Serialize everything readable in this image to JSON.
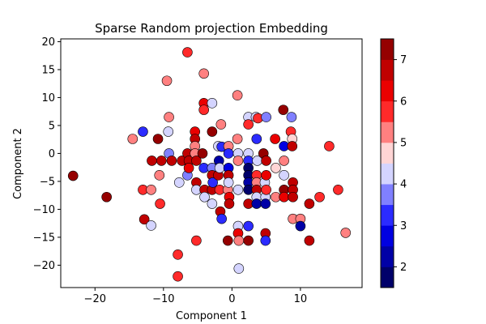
{
  "chart_data": {
    "type": "scatter",
    "title": "Sparse Random projection Embedding",
    "xlabel": "Component 1",
    "ylabel": "Component 2",
    "xlim": [
      -25,
      19
    ],
    "ylim": [
      -24,
      20.5
    ],
    "xticks": [
      -20,
      -10,
      0,
      10
    ],
    "yticks": [
      -20,
      -15,
      -10,
      -5,
      0,
      5,
      10,
      15,
      20
    ],
    "colorbar": {
      "range": [
        1.5,
        7.5
      ],
      "ticks": [
        2,
        3,
        4,
        5,
        6,
        7
      ],
      "colormap": "seismic",
      "levels": 12
    },
    "grid": false,
    "legend": "none",
    "points": [
      {
        "x": -23.2,
        "y": -4.0,
        "c": 7.2
      },
      {
        "x": -18.3,
        "y": -7.8,
        "c": 7.3
      },
      {
        "x": -14.5,
        "y": 2.6,
        "c": 5.1
      },
      {
        "x": -13.0,
        "y": 3.9,
        "c": 3.3
      },
      {
        "x": -13.0,
        "y": -6.5,
        "c": 5.7
      },
      {
        "x": -12.8,
        "y": -11.8,
        "c": 6.9
      },
      {
        "x": -11.8,
        "y": -6.5,
        "c": 5.0
      },
      {
        "x": -11.8,
        "y": -12.9,
        "c": 4.2
      },
      {
        "x": -11.7,
        "y": -1.3,
        "c": 6.7
      },
      {
        "x": -10.8,
        "y": 2.6,
        "c": 7.2
      },
      {
        "x": -10.6,
        "y": -3.9,
        "c": 5.0
      },
      {
        "x": -10.5,
        "y": -9.0,
        "c": 5.5
      },
      {
        "x": -10.3,
        "y": -1.3,
        "c": 6.6
      },
      {
        "x": -9.5,
        "y": 13.0,
        "c": 5.2
      },
      {
        "x": -9.3,
        "y": 3.9,
        "c": 4.2
      },
      {
        "x": -9.2,
        "y": 6.5,
        "c": 5.4
      },
      {
        "x": -9.2,
        "y": 0.0,
        "c": 3.9
      },
      {
        "x": -8.8,
        "y": -1.3,
        "c": 6.7
      },
      {
        "x": -7.9,
        "y": -18.1,
        "c": 5.6
      },
      {
        "x": -7.9,
        "y": -22.0,
        "c": 5.7
      },
      {
        "x": -7.7,
        "y": -5.2,
        "c": 4.3
      },
      {
        "x": -7.3,
        "y": -1.3,
        "c": 6.9
      },
      {
        "x": -6.5,
        "y": 18.1,
        "c": 5.6
      },
      {
        "x": -6.5,
        "y": -3.9,
        "c": 3.5
      },
      {
        "x": -6.5,
        "y": 0.0,
        "c": 6.6
      },
      {
        "x": -6.3,
        "y": -1.3,
        "c": 6.8
      },
      {
        "x": -6.3,
        "y": -2.6,
        "c": 6.0
      },
      {
        "x": -5.4,
        "y": 3.9,
        "c": 6.4
      },
      {
        "x": -5.4,
        "y": 2.6,
        "c": 6.9
      },
      {
        "x": -5.4,
        "y": 1.3,
        "c": 5.3
      },
      {
        "x": -5.4,
        "y": 0.0,
        "c": 5.1
      },
      {
        "x": -5.2,
        "y": -1.3,
        "c": 6.6
      },
      {
        "x": -5.2,
        "y": -5.2,
        "c": 6.8
      },
      {
        "x": -5.2,
        "y": -6.5,
        "c": 4.3
      },
      {
        "x": -5.2,
        "y": -15.6,
        "c": 5.6
      },
      {
        "x": -4.3,
        "y": 0.0,
        "c": 7.3
      },
      {
        "x": -4.1,
        "y": 14.3,
        "c": 5.1
      },
      {
        "x": -4.1,
        "y": 9.0,
        "c": 6.3
      },
      {
        "x": -4.1,
        "y": 7.8,
        "c": 5.6
      },
      {
        "x": -4.1,
        "y": -2.6,
        "c": 3.2
      },
      {
        "x": -4.0,
        "y": -6.5,
        "c": 6.5
      },
      {
        "x": -4.0,
        "y": -7.8,
        "c": 4.2
      },
      {
        "x": -2.9,
        "y": 9.0,
        "c": 4.3
      },
      {
        "x": -2.9,
        "y": 3.9,
        "c": 7.1
      },
      {
        "x": -2.9,
        "y": -2.6,
        "c": 3.9
      },
      {
        "x": -2.9,
        "y": -3.9,
        "c": 6.6
      },
      {
        "x": -2.9,
        "y": -6.5,
        "c": 6.8
      },
      {
        "x": -2.9,
        "y": -9.0,
        "c": 4.3
      },
      {
        "x": -2.8,
        "y": -5.2,
        "c": 3.3
      },
      {
        "x": -2.0,
        "y": 1.3,
        "c": 4.3
      },
      {
        "x": -2.0,
        "y": -3.9,
        "c": 6.9
      },
      {
        "x": -1.9,
        "y": -1.3,
        "c": 2.2
      },
      {
        "x": -1.8,
        "y": -2.6,
        "c": 4.1
      },
      {
        "x": -1.8,
        "y": -6.5,
        "c": 5.6
      },
      {
        "x": -1.7,
        "y": -10.4,
        "c": 6.6
      },
      {
        "x": -1.5,
        "y": -11.7,
        "c": 3.1
      },
      {
        "x": -1.6,
        "y": 5.2,
        "c": 5.1
      },
      {
        "x": -1.5,
        "y": 1.2,
        "c": 3.0
      },
      {
        "x": -0.6,
        "y": -6.5,
        "c": 5.0
      },
      {
        "x": -0.6,
        "y": -15.6,
        "c": 7.3
      },
      {
        "x": -0.5,
        "y": 1.3,
        "c": 5.0
      },
      {
        "x": -0.5,
        "y": 0.0,
        "c": 3.2
      },
      {
        "x": -0.5,
        "y": -2.6,
        "c": 2.5
      },
      {
        "x": -0.5,
        "y": -3.9,
        "c": 6.5
      },
      {
        "x": -0.5,
        "y": -5.2,
        "c": 4.2
      },
      {
        "x": -0.4,
        "y": -7.8,
        "c": 6.1
      },
      {
        "x": -0.4,
        "y": -9.0,
        "c": 6.8
      },
      {
        "x": 0.8,
        "y": 10.4,
        "c": 5.3
      },
      {
        "x": 0.8,
        "y": 2.6,
        "c": 5.2
      },
      {
        "x": 0.9,
        "y": 0.0,
        "c": 4.2
      },
      {
        "x": 0.9,
        "y": -1.3,
        "c": 5.0
      },
      {
        "x": 0.9,
        "y": -6.5,
        "c": 4.2
      },
      {
        "x": 0.9,
        "y": -13.0,
        "c": 4.3
      },
      {
        "x": 0.9,
        "y": -14.3,
        "c": 6.2
      },
      {
        "x": 1.0,
        "y": -20.6,
        "c": 4.3
      },
      {
        "x": 1.0,
        "y": -15.6,
        "c": 5.1
      },
      {
        "x": 2.4,
        "y": 6.5,
        "c": 4.3
      },
      {
        "x": 2.4,
        "y": 5.2,
        "c": 5.7
      },
      {
        "x": 2.4,
        "y": 0.0,
        "c": 4.3
      },
      {
        "x": 2.4,
        "y": -1.3,
        "c": 3.2
      },
      {
        "x": 2.4,
        "y": -2.6,
        "c": 1.9
      },
      {
        "x": 2.4,
        "y": -3.9,
        "c": 1.8
      },
      {
        "x": 2.4,
        "y": -5.2,
        "c": 2.0
      },
      {
        "x": 2.4,
        "y": -6.5,
        "c": 1.9
      },
      {
        "x": 2.4,
        "y": -9.0,
        "c": 6.9
      },
      {
        "x": 2.4,
        "y": -13.0,
        "c": 3.2
      },
      {
        "x": 2.4,
        "y": -15.6,
        "c": 7.3
      },
      {
        "x": 3.5,
        "y": 6.5,
        "c": 4.4
      },
      {
        "x": 3.6,
        "y": 2.6,
        "c": 3.2
      },
      {
        "x": 3.6,
        "y": -3.9,
        "c": 5.7
      },
      {
        "x": 3.6,
        "y": -5.2,
        "c": 5.2
      },
      {
        "x": 3.6,
        "y": -6.5,
        "c": 6.6
      },
      {
        "x": 3.6,
        "y": -7.8,
        "c": 4.3
      },
      {
        "x": 3.6,
        "y": -9.0,
        "c": 2.0
      },
      {
        "x": 3.7,
        "y": -1.3,
        "c": 4.2
      },
      {
        "x": 3.8,
        "y": 6.3,
        "c": 5.6
      },
      {
        "x": 4.6,
        "y": 0.0,
        "c": 7.0
      },
      {
        "x": 4.8,
        "y": -5.2,
        "c": 4.3
      },
      {
        "x": 4.9,
        "y": -7.8,
        "c": 4.3
      },
      {
        "x": 4.9,
        "y": -9.0,
        "c": 2.1
      },
      {
        "x": 4.9,
        "y": -14.3,
        "c": 6.9
      },
      {
        "x": 4.9,
        "y": -15.6,
        "c": 3.3
      },
      {
        "x": 5.0,
        "y": 6.5,
        "c": 3.7
      },
      {
        "x": 5.0,
        "y": -1.3,
        "c": 6.8
      },
      {
        "x": 5.0,
        "y": -3.9,
        "c": 6.2
      },
      {
        "x": 5.0,
        "y": -6.5,
        "c": 5.6
      },
      {
        "x": 6.3,
        "y": 2.6,
        "c": 6.4
      },
      {
        "x": 6.4,
        "y": -2.6,
        "c": 4.8
      },
      {
        "x": 6.4,
        "y": -7.8,
        "c": 5.0
      },
      {
        "x": 7.5,
        "y": 7.8,
        "c": 7.2
      },
      {
        "x": 7.6,
        "y": 1.3,
        "c": 2.5
      },
      {
        "x": 7.6,
        "y": -1.3,
        "c": 5.2
      },
      {
        "x": 7.6,
        "y": -3.9,
        "c": 4.2
      },
      {
        "x": 7.6,
        "y": -6.5,
        "c": 7.0
      },
      {
        "x": 7.6,
        "y": -7.8,
        "c": 6.3
      },
      {
        "x": 8.6,
        "y": 3.9,
        "c": 5.6
      },
      {
        "x": 8.7,
        "y": 6.5,
        "c": 3.7
      },
      {
        "x": 8.8,
        "y": 2.6,
        "c": 4.8
      },
      {
        "x": 8.8,
        "y": 1.3,
        "c": 6.6
      },
      {
        "x": 8.9,
        "y": -5.2,
        "c": 6.6
      },
      {
        "x": 8.9,
        "y": -6.5,
        "c": 6.5
      },
      {
        "x": 8.9,
        "y": -7.8,
        "c": 6.9
      },
      {
        "x": 8.9,
        "y": -11.7,
        "c": 5.3
      },
      {
        "x": 10.0,
        "y": -11.7,
        "c": 5.1
      },
      {
        "x": 10.0,
        "y": -13.0,
        "c": 2.0
      },
      {
        "x": 11.3,
        "y": -9.0,
        "c": 6.5
      },
      {
        "x": 11.3,
        "y": -15.6,
        "c": 6.6
      },
      {
        "x": 12.8,
        "y": -7.8,
        "c": 5.7
      },
      {
        "x": 14.2,
        "y": 1.3,
        "c": 5.7
      },
      {
        "x": 15.5,
        "y": -6.5,
        "c": 5.6
      },
      {
        "x": 16.6,
        "y": -14.2,
        "c": 5.1
      }
    ]
  }
}
